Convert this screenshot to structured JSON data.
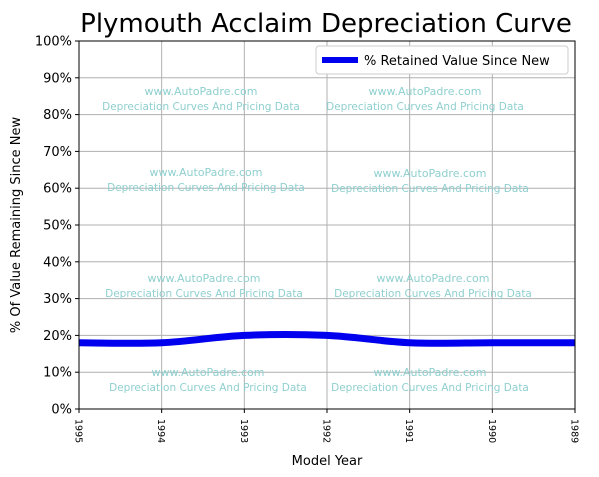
{
  "chart_data": {
    "type": "line",
    "title": "Plymouth Acclaim Depreciation Curve",
    "xlabel": "Model Year",
    "ylabel": "% Of Value Remaining Since New",
    "x": [
      "1995",
      "1994",
      "1993",
      "1992",
      "1991",
      "1990",
      "1989"
    ],
    "ylim": [
      0,
      100
    ],
    "yticks": [
      "0%",
      "10%",
      "20%",
      "30%",
      "40%",
      "50%",
      "60%",
      "70%",
      "80%",
      "90%",
      "100%"
    ],
    "grid": true,
    "legend_position": "top-right",
    "series": [
      {
        "name": "% Retained Value Since New",
        "color": "#0000ee",
        "values": [
          18,
          18,
          20,
          20,
          18,
          18,
          18
        ]
      }
    ],
    "watermarks": [
      {
        "line1": "www.AutoPadre.com",
        "line2": "Depreciation Curves And Pricing Data"
      },
      {
        "line1": "www.AutoPadre.com",
        "line2": "Depreciation Curves And Pricing Data"
      },
      {
        "line1": "www.AutoPadre.com",
        "line2": "Depreciation Curves And Pricing Data"
      },
      {
        "line1": "www.AutoPadre.com",
        "line2": "Depreciation Curves And Pricing Data"
      },
      {
        "line1": "www.AutoPadre.com",
        "line2": "Depreciation Curves And Pricing Data"
      },
      {
        "line1": "www.AutoPadre.com",
        "line2": "Depreciation Curves And Pricing Data"
      },
      {
        "line1": "www.AutoPadre.com",
        "line2": "Depreciation Curves And Pricing Data"
      },
      {
        "line1": "www.AutoPadre.com",
        "line2": "Depreciation Curves And Pricing Data"
      }
    ]
  }
}
